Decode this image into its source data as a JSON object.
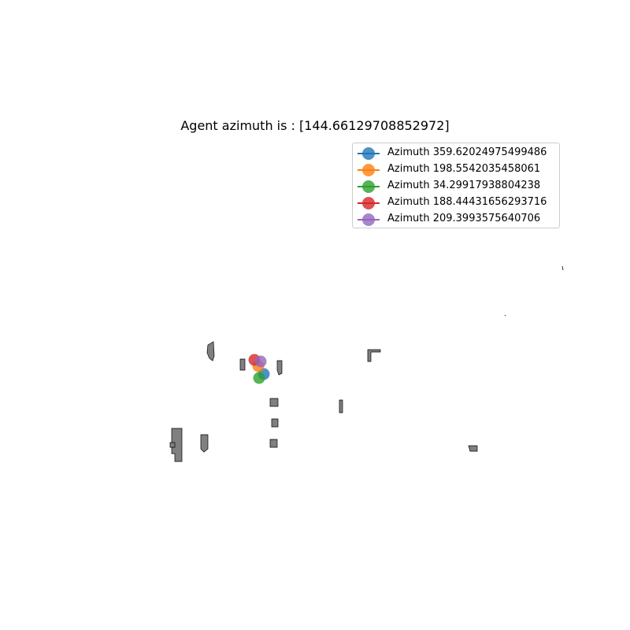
{
  "chart_data": {
    "type": "scatter",
    "title": "Agent azimuth is : [144.66129708852972]",
    "xlabel": "",
    "ylabel": "",
    "axes_visible": false,
    "grid": false,
    "legend_position": "top-right",
    "series": [
      {
        "name": "Azimuth 359.62024975499486",
        "color": "#1f77b4",
        "x": [
          335
        ],
        "y": [
          475
        ]
      },
      {
        "name": "Azimuth 198.5542035458061",
        "color": "#ff7f0e",
        "x": [
          328
        ],
        "y": [
          465
        ]
      },
      {
        "name": "Azimuth 34.29917938804238",
        "color": "#2ca02c",
        "x": [
          329
        ],
        "y": [
          480
        ]
      },
      {
        "name": "Azimuth 188.44431656293716",
        "color": "#d62728",
        "x": [
          323
        ],
        "y": [
          457
        ]
      },
      {
        "name": "Azimuth 209.3993575640706",
        "color": "#9467bd",
        "x": [
          331
        ],
        "y": [
          459
        ]
      }
    ],
    "obstacle_color": "#808080"
  }
}
